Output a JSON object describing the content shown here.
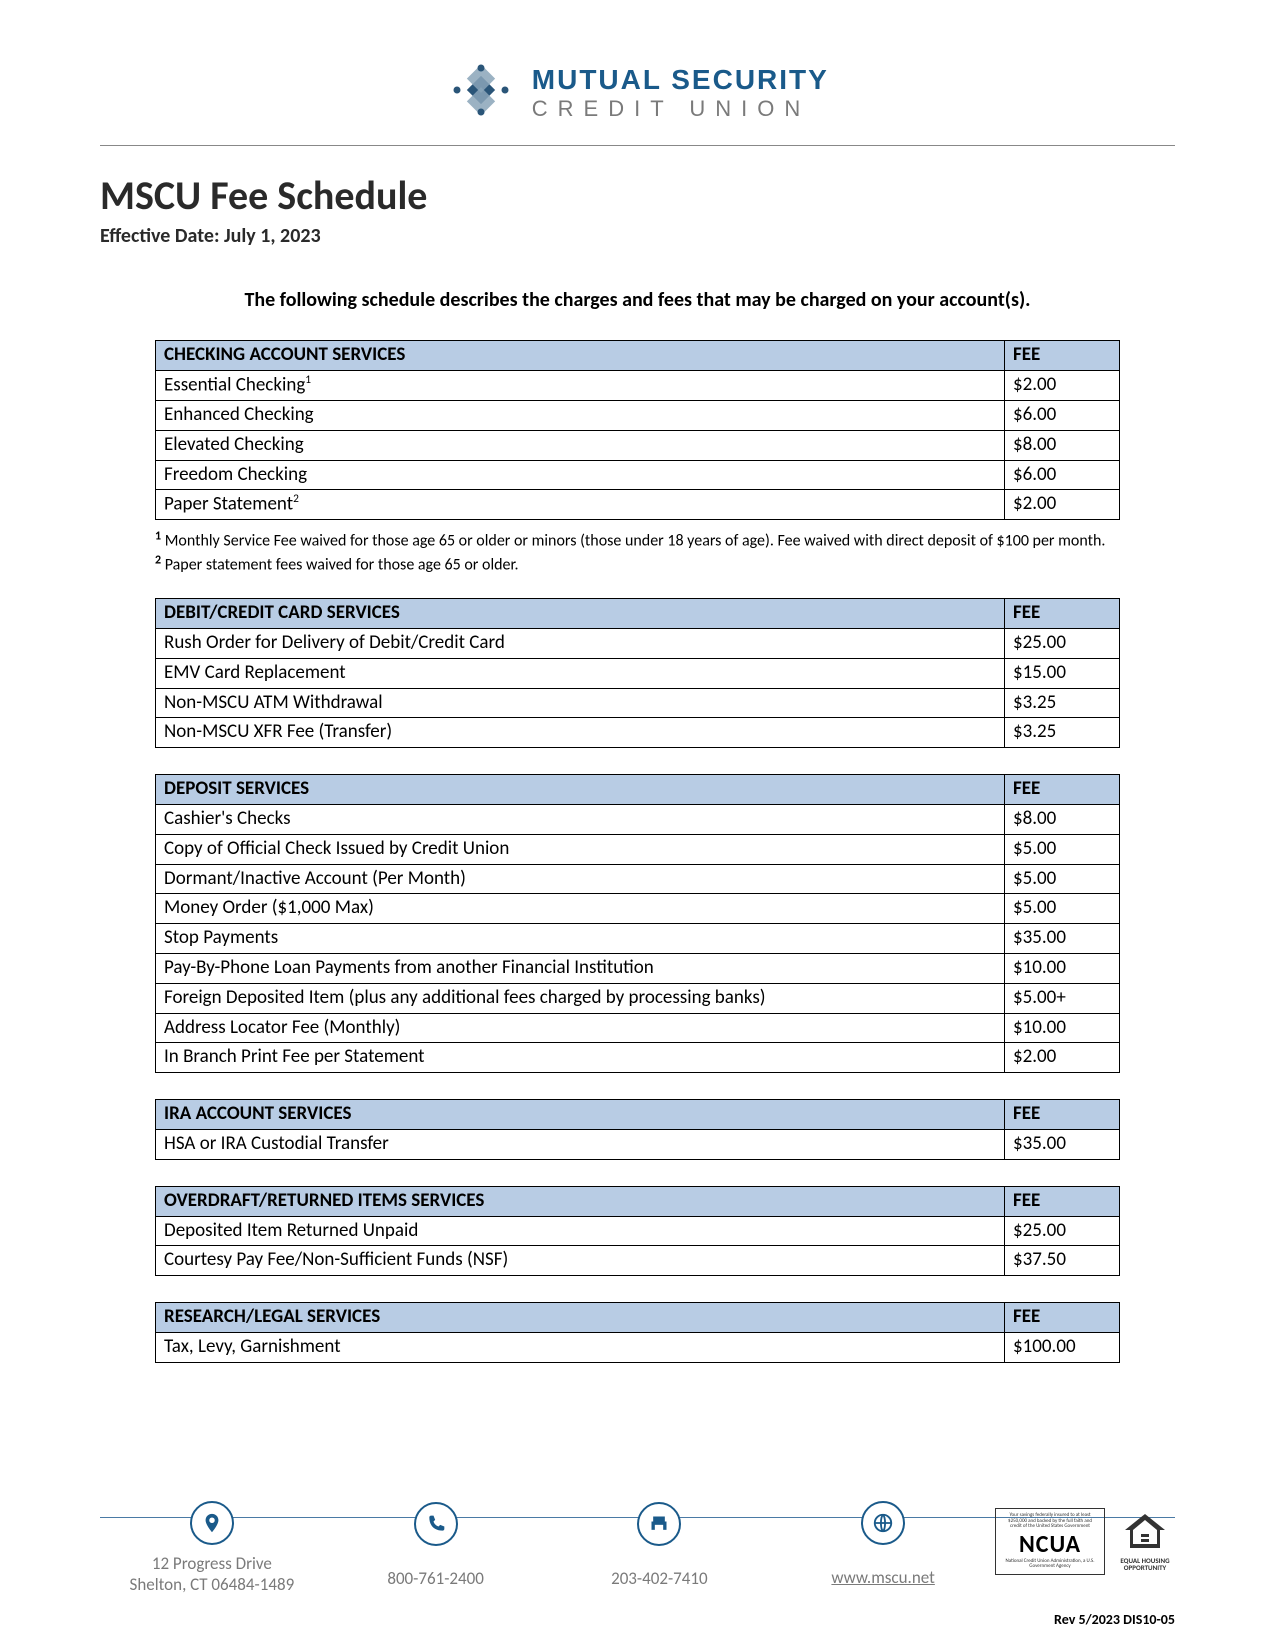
{
  "logo": {
    "line1": "MUTUAL SECURITY",
    "line2": "CREDIT UNION",
    "diamond_colors": {
      "dark": "#2a5578",
      "light": "#8aa5b8",
      "dot": "#2a5578"
    }
  },
  "title": "MSCU Fee Schedule",
  "effective_label": "Effective Date:  July 1, 2023",
  "intro": "The following schedule describes the charges and fees that may be charged on your account(s).",
  "header_bg": "#b8cce4",
  "border_color": "#000000",
  "fee_col_label": "FEE",
  "sections": [
    {
      "title": "CHECKING ACCOUNT SERVICES",
      "rows": [
        {
          "label": "Essential Checking",
          "sup": "1",
          "fee": "$2.00"
        },
        {
          "label": "Enhanced Checking",
          "fee": "$6.00"
        },
        {
          "label": "Elevated Checking",
          "fee": "$8.00"
        },
        {
          "label": "Freedom Checking",
          "fee": "$6.00"
        },
        {
          "label": "Paper Statement",
          "sup": "2",
          "fee": "$2.00"
        }
      ],
      "footnotes": [
        {
          "num": "1",
          "text": "Monthly Service Fee waived for those age 65 or older or minors (those under 18 years of age). Fee waived with direct deposit of $100 per month."
        },
        {
          "num": "2",
          "text": "Paper statement fees waived for those age 65 or older."
        }
      ]
    },
    {
      "title": "DEBIT/CREDIT CARD SERVICES",
      "rows": [
        {
          "label": "Rush Order for Delivery of Debit/Credit Card",
          "fee": "$25.00"
        },
        {
          "label": "EMV Card Replacement",
          "fee": "$15.00"
        },
        {
          "label": "Non-MSCU ATM Withdrawal",
          "fee": "$3.25"
        },
        {
          "label": "Non-MSCU XFR Fee (Transfer)",
          "fee": "$3.25"
        }
      ]
    },
    {
      "title": "DEPOSIT SERVICES",
      "rows": [
        {
          "label": "Cashier's Checks",
          "fee": "$8.00"
        },
        {
          "label": "Copy of Official Check Issued by Credit Union",
          "fee": "$5.00"
        },
        {
          "label": "Dormant/Inactive Account (Per Month)",
          "fee": "$5.00"
        },
        {
          "label": "Money Order ($1,000 Max)",
          "fee": "$5.00"
        },
        {
          "label": "Stop Payments",
          "fee": "$35.00"
        },
        {
          "label": "Pay-By-Phone Loan Payments from another Financial Institution",
          "fee": "$10.00"
        },
        {
          "label": "Foreign Deposited Item (plus any additional fees charged by processing banks)",
          "fee": "$5.00+"
        },
        {
          "label": "Address Locator Fee (Monthly)",
          "fee": "$10.00"
        },
        {
          "label": "In Branch Print Fee per Statement",
          "fee": "$2.00"
        }
      ]
    },
    {
      "title": "IRA ACCOUNT SERVICES",
      "rows": [
        {
          "label": "HSA or IRA Custodial Transfer",
          "fee": "$35.00"
        }
      ]
    },
    {
      "title": "OVERDRAFT/RETURNED ITEMS SERVICES",
      "rows": [
        {
          "label": "Deposited Item Returned Unpaid",
          "fee": "$25.00"
        },
        {
          "label": "Courtesy Pay Fee/Non-Sufficient Funds (NSF)",
          "fee": "$37.50"
        }
      ]
    },
    {
      "title": "RESEARCH/LEGAL SERVICES",
      "rows": [
        {
          "label": "Tax, Levy, Garnishment",
          "fee": "$100.00"
        }
      ]
    }
  ],
  "footer": {
    "address_line1": "12 Progress Drive",
    "address_line2": "Shelton, CT 06484-1489",
    "phone1": "800-761-2400",
    "phone2": "203-402-7410",
    "website": "www.mscu.net",
    "ncua_label": "NCUA",
    "eho_label": "EQUAL HOUSING OPPORTUNITY"
  },
  "revision": "Rev 5/2023 DIS10-05"
}
